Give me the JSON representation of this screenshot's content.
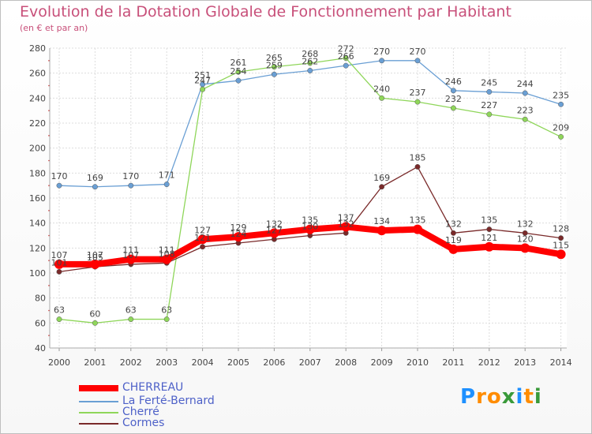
{
  "chart_data": {
    "type": "line",
    "title": "Evolution de la Dotation Globale de Fonctionnement par Habitant",
    "subtitle": "(en € et par an)",
    "x": [
      "2000",
      "2001",
      "2002",
      "2003",
      "2004",
      "2005",
      "2006",
      "2007",
      "2008",
      "2009",
      "2010",
      "2011",
      "2012",
      "2013",
      "2014"
    ],
    "ylim": [
      40,
      280
    ],
    "yticks": [
      40,
      60,
      80,
      100,
      120,
      140,
      160,
      180,
      200,
      220,
      240,
      260,
      280
    ],
    "grid": true,
    "legend_position": "bottom-left",
    "series": [
      {
        "name": "CHERREAU",
        "color": "#ff0000",
        "values": [
          107,
          107,
          111,
          111,
          127,
          129,
          132,
          135,
          137,
          134,
          135,
          119,
          121,
          120,
          115
        ]
      },
      {
        "name": "La Ferté-Bernard",
        "color": "#6a9fd4",
        "values": [
          170,
          169,
          170,
          171,
          251,
          254,
          259,
          262,
          266,
          270,
          270,
          246,
          245,
          244,
          235
        ]
      },
      {
        "name": "Cherré",
        "color": "#8fd65a",
        "values": [
          63,
          60,
          63,
          63,
          247,
          261,
          265,
          268,
          272,
          240,
          237,
          232,
          227,
          223,
          209
        ]
      },
      {
        "name": "Cormes",
        "color": "#7a2a2a",
        "values": [
          101,
          105,
          107,
          108,
          121,
          124,
          127,
          130,
          132,
          169,
          185,
          132,
          135,
          132,
          128
        ]
      }
    ]
  },
  "logo": {
    "text": "Proxiti",
    "letters": [
      "P",
      "r",
      "o",
      "x",
      "i",
      "t",
      "i"
    ],
    "colors": [
      "#1e90ff",
      "#ff8c00",
      "#ff8c00",
      "#3a9a3a",
      "#1e90ff",
      "#ff8c00",
      "#3a9a3a"
    ]
  }
}
